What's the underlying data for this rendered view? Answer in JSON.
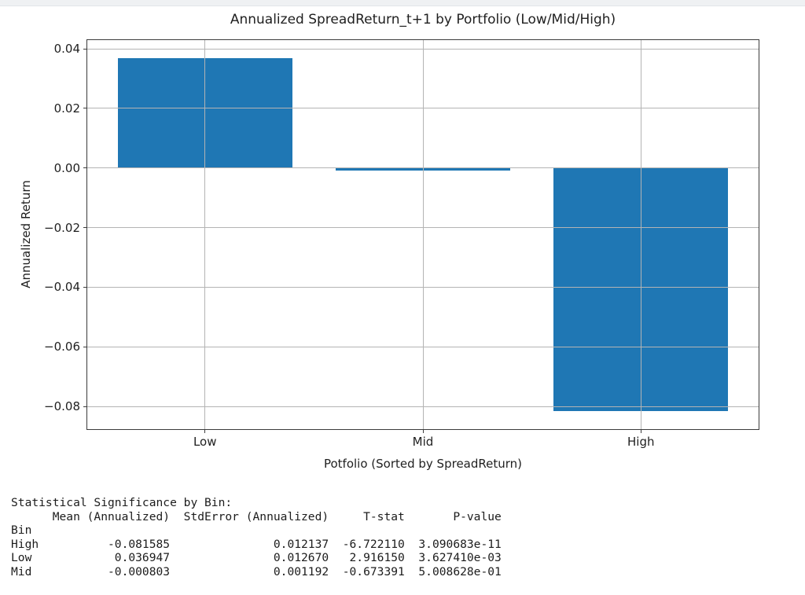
{
  "page": {
    "top_strip_color": "#eff1f3",
    "background": "#ffffff"
  },
  "chart_data": {
    "type": "bar",
    "title": "Annualized SpreadReturn_t+1 by Portfolio (Low/Mid/High)",
    "xlabel": "Potfolio (Sorted by SpreadReturn)",
    "ylabel": "Annualized Return",
    "categories": [
      "Low",
      "Mid",
      "High"
    ],
    "values": [
      0.036947,
      -0.000803,
      -0.081585
    ],
    "bar_color": "#1f77b4",
    "bar_width_fraction": 0.8,
    "xlim": [
      -0.54,
      2.54
    ],
    "ylim": [
      -0.0876,
      0.0429
    ],
    "yticks": [
      0.04,
      0.02,
      0.0,
      -0.02,
      -0.04,
      -0.06,
      -0.08
    ],
    "ytick_labels": [
      "0.04",
      "0.02",
      "0.00",
      "−0.02",
      "−0.04",
      "−0.06",
      "−0.08"
    ],
    "grid": true,
    "grid_color": "#b4b4b4",
    "grid_above_bars": true,
    "legend_position": "none"
  },
  "console": {
    "lines": [
      "Statistical Significance by Bin:",
      "      Mean (Annualized)  StdError (Annualized)     T-stat       P-value",
      "Bin",
      "High          -0.081585               0.012137  -6.722110  3.090683e-11",
      "Low            0.036947               0.012670   2.916150  3.627410e-03",
      "Mid           -0.000803               0.001192  -0.673391  5.008628e-01"
    ]
  }
}
